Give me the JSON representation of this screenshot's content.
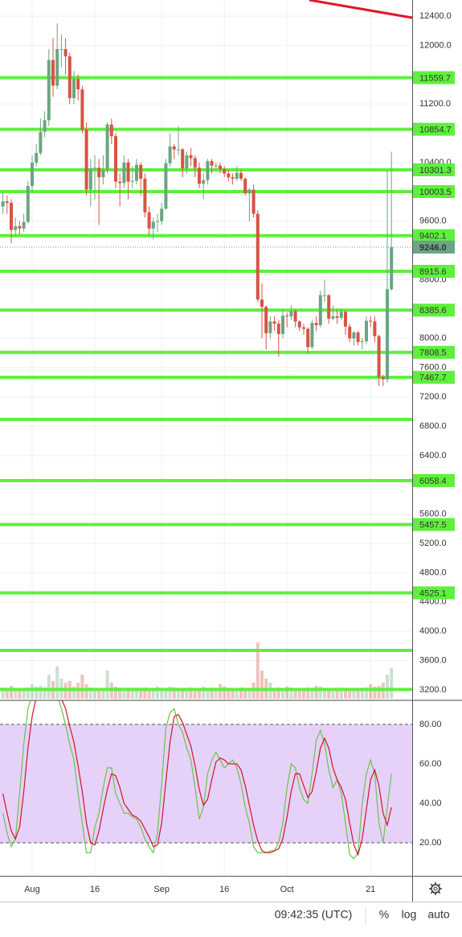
{
  "chart_data": [
    {
      "type": "candlestick",
      "categories": [
        null,
        null,
        null,
        null,
        null,
        null,
        null,
        "Aug",
        null,
        null,
        null,
        null,
        null,
        null,
        null,
        null,
        null,
        null,
        null,
        null,
        null,
        null,
        "16",
        null,
        null,
        null,
        null,
        null,
        null,
        null,
        null,
        null,
        null,
        null,
        null,
        null,
        null,
        null,
        "Sep",
        null,
        null,
        null,
        null,
        null,
        null,
        null,
        null,
        null,
        null,
        null,
        null,
        null,
        null,
        "16",
        null,
        null,
        null,
        null,
        null,
        null,
        null,
        null,
        null,
        null,
        null,
        null,
        null,
        null,
        "Oct",
        null,
        null,
        null,
        null,
        null,
        null,
        null,
        null,
        null,
        null,
        null,
        null,
        null,
        null,
        null,
        null,
        null,
        null,
        null,
        "21",
        null,
        null,
        null,
        null,
        null
      ],
      "candles": [
        [
          9800,
          10000,
          9700,
          9870
        ],
        [
          9870,
          9950,
          9700,
          9850
        ],
        [
          9850,
          9900,
          9300,
          9480
        ],
        [
          9480,
          9650,
          9400,
          9530
        ],
        [
          9530,
          9600,
          9420,
          9500
        ],
        [
          9500,
          9700,
          9450,
          9590
        ],
        [
          9590,
          10150,
          9570,
          10080
        ],
        [
          10080,
          10500,
          10000,
          10400
        ],
        [
          10400,
          10650,
          10350,
          10530
        ],
        [
          10530,
          11000,
          10500,
          10820
        ],
        [
          10820,
          11100,
          10750,
          10980
        ],
        [
          10980,
          11950,
          10900,
          11800
        ],
        [
          11800,
          12100,
          11300,
          11450
        ],
        [
          11450,
          12300,
          11400,
          11950
        ],
        [
          11950,
          12150,
          11700,
          11950
        ],
        [
          11950,
          12100,
          11600,
          11850
        ],
        [
          11850,
          11900,
          11200,
          11280
        ],
        [
          11280,
          11650,
          11200,
          11540
        ],
        [
          11540,
          11600,
          11250,
          11400
        ],
        [
          11400,
          11450,
          10800,
          10850
        ],
        [
          10850,
          10950,
          9950,
          10030
        ],
        [
          10030,
          10450,
          9800,
          10320
        ],
        [
          10320,
          10500,
          9900,
          10330
        ],
        [
          10330,
          10450,
          9550,
          10200
        ],
        [
          10200,
          10500,
          10100,
          10300
        ],
        [
          10300,
          10950,
          10250,
          10920
        ],
        [
          10920,
          11000,
          10650,
          10760
        ],
        [
          10760,
          10800,
          10050,
          10140
        ],
        [
          10140,
          10250,
          9800,
          10120
        ],
        [
          10120,
          10500,
          10050,
          10400
        ],
        [
          10400,
          10450,
          9900,
          10140
        ],
        [
          10140,
          10350,
          10050,
          10150
        ],
        [
          10150,
          10450,
          10100,
          10370
        ],
        [
          10370,
          10400,
          9950,
          10180
        ],
        [
          10180,
          10250,
          9650,
          9720
        ],
        [
          9720,
          9800,
          9400,
          9500
        ],
        [
          9500,
          9650,
          9350,
          9590
        ],
        [
          9590,
          9700,
          9450,
          9600
        ],
        [
          9600,
          9850,
          9550,
          9770
        ],
        [
          9770,
          10450,
          9750,
          10390
        ],
        [
          10390,
          10800,
          10350,
          10620
        ],
        [
          10620,
          10650,
          10450,
          10580
        ],
        [
          10580,
          10900,
          10500,
          10580
        ],
        [
          10580,
          10600,
          10200,
          10320
        ],
        [
          10320,
          10550,
          10250,
          10500
        ],
        [
          10500,
          10600,
          10350,
          10460
        ],
        [
          10460,
          10500,
          10200,
          10330
        ],
        [
          10330,
          10400,
          10050,
          10110
        ],
        [
          10110,
          10250,
          9900,
          10160
        ],
        [
          10160,
          10450,
          10100,
          10420
        ],
        [
          10420,
          10450,
          10250,
          10360
        ],
        [
          10360,
          10400,
          10300,
          10360
        ],
        [
          10360,
          10400,
          10250,
          10310
        ],
        [
          10310,
          10350,
          10200,
          10250
        ],
        [
          10250,
          10300,
          10150,
          10200
        ],
        [
          10200,
          10250,
          10100,
          10180
        ],
        [
          10180,
          10350,
          10150,
          10260
        ],
        [
          10260,
          10300,
          10150,
          10180
        ],
        [
          10180,
          10200,
          9950,
          9980
        ],
        [
          9980,
          10050,
          9600,
          10030
        ],
        [
          10030,
          10100,
          9650,
          9700
        ],
        [
          9700,
          9750,
          8500,
          8530
        ],
        [
          8530,
          8750,
          8000,
          8430
        ],
        [
          8430,
          8450,
          7850,
          8070
        ],
        [
          8070,
          8300,
          8000,
          8230
        ],
        [
          8230,
          8300,
          8100,
          8200
        ],
        [
          8200,
          8250,
          7750,
          8060
        ],
        [
          8060,
          8400,
          8000,
          8310
        ],
        [
          8310,
          8350,
          8150,
          8300
        ],
        [
          8300,
          8450,
          8250,
          8370
        ],
        [
          8370,
          8400,
          8150,
          8230
        ],
        [
          8230,
          8250,
          8100,
          8150
        ],
        [
          8150,
          8200,
          8050,
          8130
        ],
        [
          8130,
          8150,
          7800,
          7880
        ],
        [
          7880,
          8250,
          7850,
          8210
        ],
        [
          8210,
          8300,
          8100,
          8180
        ],
        [
          8180,
          8650,
          8150,
          8590
        ],
        [
          8590,
          8800,
          8500,
          8590
        ],
        [
          8590,
          8600,
          8200,
          8270
        ],
        [
          8270,
          8450,
          8250,
          8300
        ],
        [
          8300,
          8400,
          8200,
          8280
        ],
        [
          8280,
          8400,
          8250,
          8360
        ],
        [
          8360,
          8380,
          8050,
          8160
        ],
        [
          8160,
          8200,
          7950,
          8000
        ],
        [
          8000,
          8100,
          7900,
          8080
        ],
        [
          8080,
          8100,
          7900,
          7950
        ],
        [
          7950,
          8000,
          7850,
          7960
        ],
        [
          7960,
          8300,
          7920,
          8240
        ],
        [
          8240,
          8300,
          8150,
          8230
        ],
        [
          8230,
          8300,
          7950,
          8030
        ],
        [
          8030,
          8050,
          7350,
          7470
        ],
        [
          7470,
          7500,
          7350,
          7440
        ],
        [
          7440,
          10300,
          7400,
          8670
        ],
        [
          8670,
          10550,
          8650,
          9246
        ]
      ],
      "volumes": [
        14,
        12,
        16,
        12,
        11,
        10,
        14,
        18,
        15,
        16,
        14,
        30,
        22,
        40,
        25,
        20,
        22,
        15,
        20,
        30,
        18,
        14,
        12,
        10,
        12,
        35,
        20,
        15,
        14,
        12,
        14,
        12,
        10,
        12,
        14,
        10,
        12,
        15,
        12,
        12,
        15,
        14,
        12,
        10,
        12,
        14,
        10,
        12,
        15,
        12,
        14,
        12,
        18,
        15,
        12,
        10,
        12,
        14,
        12,
        12,
        20,
        70,
        35,
        25,
        20,
        12,
        14,
        12,
        15,
        14,
        12,
        12,
        10,
        14,
        12,
        16,
        15,
        12,
        10,
        12,
        10,
        14,
        12,
        10,
        10,
        12,
        12,
        14,
        18,
        15,
        16,
        20,
        30,
        38
      ],
      "up_color": "#6ba583",
      "down_color": "#d75442",
      "ylim": [
        3057,
        12620
      ],
      "yticks": [
        {
          "value": 12400,
          "label": "12400.0"
        },
        {
          "value": 12000,
          "label": "12000.0"
        },
        {
          "value": 11200,
          "label": "11200.0"
        },
        {
          "value": 10400,
          "label": "10400.0"
        },
        {
          "value": 9600,
          "label": "9600.0"
        },
        {
          "value": 8800,
          "label": "8800.0"
        },
        {
          "value": 8000,
          "label": "8000.0"
        },
        {
          "value": 7600,
          "label": "7600.0"
        },
        {
          "value": 7200,
          "label": "7200.0"
        },
        {
          "value": 6800,
          "label": "6800.0"
        },
        {
          "value": 6400,
          "label": "6400.0"
        },
        {
          "value": 5600,
          "label": "5600.0"
        },
        {
          "value": 5200,
          "label": "5200.0"
        },
        {
          "value": 4800,
          "label": "4800.0"
        },
        {
          "value": 4400,
          "label": "4400.0"
        },
        {
          "value": 4000,
          "label": "4000.0"
        },
        {
          "value": 3600,
          "label": "3600.0"
        },
        {
          "value": 3200,
          "label": "3200.0"
        }
      ],
      "levels": [
        11559.7,
        10854.7,
        10301.3,
        10003.5,
        9402.1,
        8915.6,
        8385.6,
        7808.5,
        7467.7,
        6058.4,
        5457.5,
        4525.1
      ],
      "unlabeled_levels": [
        6893,
        3739,
        3205
      ],
      "level_color": "#5ef03c",
      "last_price": {
        "value": 9246,
        "label": "9246.0"
      },
      "grid": true
    },
    {
      "type": "stochastic",
      "series": [
        {
          "color": "#6cc24a",
          "values": [
            35,
            25,
            18,
            22,
            45,
            70,
            88,
            95,
            100,
            100,
            100,
            98,
            96,
            95,
            88,
            80,
            70,
            62,
            45,
            30,
            15,
            15,
            28,
            35,
            48,
            58,
            58,
            45,
            40,
            35,
            35,
            33,
            32,
            28,
            22,
            18,
            15,
            25,
            50,
            78,
            86,
            88,
            80,
            76,
            68,
            62,
            48,
            32,
            38,
            55,
            62,
            66,
            62,
            58,
            60,
            62,
            58,
            50,
            38,
            30,
            18,
            15,
            15,
            15,
            16,
            16,
            20,
            30,
            48,
            60,
            58,
            48,
            42,
            40,
            55,
            72,
            77,
            70,
            57,
            48,
            52,
            45,
            30,
            14,
            12,
            15,
            40,
            55,
            62,
            55,
            30,
            20,
            38,
            55
          ]
        },
        {
          "color": "#d0132f",
          "values": [
            45,
            35,
            26,
            22,
            28,
            46,
            68,
            84,
            94,
            98,
            100,
            99,
            98,
            96,
            93,
            88,
            79,
            71,
            59,
            46,
            30,
            20,
            19,
            26,
            37,
            47,
            55,
            54,
            48,
            40,
            37,
            34,
            33,
            31,
            27,
            23,
            18,
            19,
            30,
            51,
            71,
            84,
            85,
            81,
            75,
            69,
            59,
            47,
            39,
            42,
            52,
            61,
            63,
            62,
            60,
            60,
            60,
            57,
            49,
            39,
            29,
            21,
            16,
            15,
            15,
            16,
            17,
            22,
            33,
            46,
            55,
            55,
            49,
            43,
            46,
            56,
            68,
            73,
            68,
            58,
            52,
            48,
            42,
            30,
            19,
            14,
            22,
            37,
            52,
            57,
            49,
            35,
            29,
            38
          ]
        }
      ],
      "ylim": [
        3.3,
        92.2
      ],
      "band": [
        20,
        80
      ],
      "band_color": "#e3cdf7",
      "yticks": [
        {
          "value": 80,
          "label": "80.00"
        },
        {
          "value": 60,
          "label": "60.00"
        },
        {
          "value": 40,
          "label": "40.00"
        },
        {
          "value": 20,
          "label": "20.00"
        }
      ]
    }
  ],
  "toolbar": {
    "time": "09:42:35 (UTC)",
    "percent": "%",
    "log": "log",
    "auto": "auto"
  }
}
